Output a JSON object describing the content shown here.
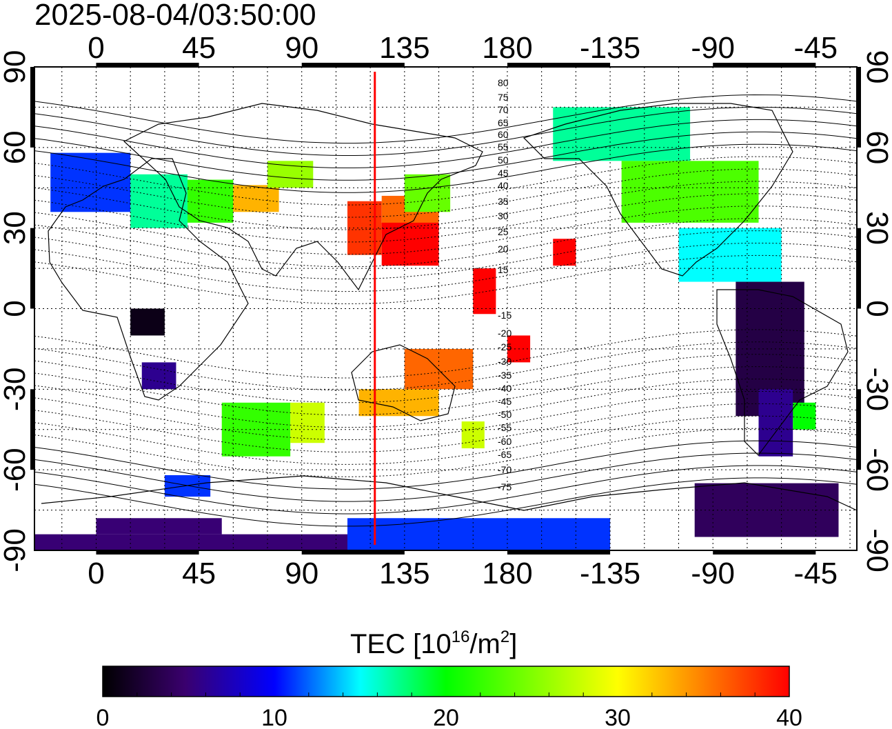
{
  "title": "2025-08-04/03:50:00",
  "map": {
    "longitude_ticks": [
      "0",
      "45",
      "90",
      "135",
      "180",
      "-135",
      "-90",
      "-45"
    ],
    "latitude_ticks_left": [
      "90",
      "60",
      "30",
      "0",
      "-30",
      "-60",
      "-90"
    ],
    "latitude_ticks_right": [
      "90",
      "60",
      "30",
      "0",
      "-30",
      "-60",
      "-90"
    ],
    "meridian_line_color": "#ff0000",
    "contour_labels": [
      "80",
      "75",
      "70",
      "65",
      "60",
      "55",
      "50",
      "45",
      "40",
      "35",
      "30",
      "25",
      "20",
      "15",
      "-15",
      "-20",
      "-25",
      "-30",
      "-35",
      "-40",
      "-45",
      "-50",
      "-55",
      "-60",
      "-65",
      "-70",
      "-75"
    ]
  },
  "colorbar": {
    "title_prefix": "TEC  [10",
    "title_exp": "16",
    "title_mid": "/m",
    "title_exp2": "2",
    "title_suffix": "]",
    "tick_labels": [
      "0",
      "10",
      "20",
      "30",
      "40"
    ],
    "min": 0,
    "max": 40,
    "colors": [
      "#000000",
      "#3a006e",
      "#0000ff",
      "#00ffff",
      "#00ff00",
      "#ffff00",
      "#ff0000"
    ]
  },
  "chart_data": {
    "type": "heatmap",
    "title": "2025-08-04/03:50:00",
    "xlabel": "",
    "ylabel": "",
    "xlim": [
      -27,
      333
    ],
    "ylim": [
      -90,
      90
    ],
    "x_ticks": [
      0,
      45,
      90,
      135,
      180,
      -135,
      -90,
      -45
    ],
    "y_ticks": [
      90,
      60,
      30,
      0,
      -30,
      -60,
      -90
    ],
    "meridian_longitude": 122,
    "colorbar_range": [
      0,
      40
    ],
    "colorbar_label": "TEC  [10^16/m^2]",
    "tec_patches": [
      {
        "lon_range": [
          -20,
          15
        ],
        "lat_range": [
          36,
          58
        ],
        "tec": 11
      },
      {
        "lon_range": [
          15,
          40
        ],
        "lat_range": [
          30,
          50
        ],
        "tec": 17
      },
      {
        "lon_range": [
          40,
          60
        ],
        "lat_range": [
          32,
          48
        ],
        "tec": 22
      },
      {
        "lon_range": [
          60,
          80
        ],
        "lat_range": [
          36,
          46
        ],
        "tec": 33
      },
      {
        "lon_range": [
          75,
          95
        ],
        "lat_range": [
          45,
          55
        ],
        "tec": 26
      },
      {
        "lon_range": [
          110,
          125
        ],
        "lat_range": [
          20,
          40
        ],
        "tec": 38
      },
      {
        "lon_range": [
          125,
          150
        ],
        "lat_range": [
          28,
          42
        ],
        "tec": 36
      },
      {
        "lon_range": [
          125,
          150
        ],
        "lat_range": [
          16,
          32
        ],
        "tec": 40
      },
      {
        "lon_range": [
          135,
          155
        ],
        "lat_range": [
          36,
          50
        ],
        "tec": 24
      },
      {
        "lon_range": [
          165,
          175
        ],
        "lat_range": [
          -2,
          15
        ],
        "tec": 40
      },
      {
        "lon_range": [
          200,
          210
        ],
        "lat_range": [
          16,
          26
        ],
        "tec": 40
      },
      {
        "lon_range": [
          180,
          190
        ],
        "lat_range": [
          -20,
          -10
        ],
        "tec": 40
      },
      {
        "lon_range": [
          200,
          260
        ],
        "lat_range": [
          55,
          75
        ],
        "tec": 17
      },
      {
        "lon_range": [
          230,
          290
        ],
        "lat_range": [
          32,
          55
        ],
        "tec": 23
      },
      {
        "lon_range": [
          255,
          300
        ],
        "lat_range": [
          10,
          30
        ],
        "tec": 15
      },
      {
        "lon_range": [
          280,
          310
        ],
        "lat_range": [
          -40,
          10
        ],
        "tec": 3
      },
      {
        "lon_range": [
          290,
          305
        ],
        "lat_range": [
          -55,
          -30
        ],
        "tec": 6
      },
      {
        "lon_range": [
          305,
          315
        ],
        "lat_range": [
          -45,
          -35
        ],
        "tec": 20
      },
      {
        "lon_range": [
          262,
          325
        ],
        "lat_range": [
          -85,
          -65
        ],
        "tec": 4
      },
      {
        "lon_range": [
          15,
          30
        ],
        "lat_range": [
          -10,
          0
        ],
        "tec": 1
      },
      {
        "lon_range": [
          20,
          35
        ],
        "lat_range": [
          -30,
          -20
        ],
        "tec": 6
      },
      {
        "lon_range": [
          55,
          85
        ],
        "lat_range": [
          -55,
          -35
        ],
        "tec": 22
      },
      {
        "lon_range": [
          85,
          100
        ],
        "lat_range": [
          -50,
          -35
        ],
        "tec": 28
      },
      {
        "lon_range": [
          30,
          50
        ],
        "lat_range": [
          -70,
          -62
        ],
        "tec": 11
      },
      {
        "lon_range": [
          115,
          150
        ],
        "lat_range": [
          -40,
          -30
        ],
        "tec": 33
      },
      {
        "lon_range": [
          135,
          165
        ],
        "lat_range": [
          -30,
          -15
        ],
        "tec": 36
      },
      {
        "lon_range": [
          160,
          170
        ],
        "lat_range": [
          -52,
          -42
        ],
        "tec": 28
      },
      {
        "lon_range": [
          110,
          225
        ],
        "lat_range": [
          -90,
          -78
        ],
        "tec": 11
      },
      {
        "lon_range": [
          -27,
          110
        ],
        "lat_range": [
          -90,
          -84
        ],
        "tec": 5
      },
      {
        "lon_range": [
          0,
          55
        ],
        "lat_range": [
          -84,
          -78
        ],
        "tec": 5
      }
    ]
  }
}
